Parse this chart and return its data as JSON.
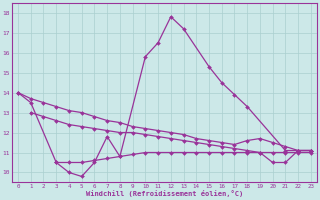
{
  "xlabel": "Windchill (Refroidissement éolien,°C)",
  "bg_color": "#cce8e8",
  "grid_color": "#aacfcf",
  "line_color": "#993399",
  "xlim": [
    -0.5,
    23.5
  ],
  "ylim": [
    9.5,
    18.5
  ],
  "yticks": [
    10,
    11,
    12,
    13,
    14,
    15,
    16,
    17,
    18
  ],
  "xticks": [
    0,
    1,
    2,
    3,
    4,
    5,
    6,
    7,
    8,
    9,
    10,
    11,
    12,
    13,
    14,
    15,
    16,
    17,
    18,
    19,
    20,
    21,
    22,
    23
  ],
  "curve1_x": [
    0,
    1,
    3,
    4,
    5,
    6,
    7,
    8,
    10,
    11,
    12,
    13,
    15,
    16,
    17,
    18,
    21,
    22,
    23
  ],
  "curve1_y": [
    14.0,
    13.5,
    10.5,
    10.0,
    9.8,
    10.5,
    11.8,
    10.8,
    15.8,
    16.5,
    17.8,
    17.2,
    15.3,
    14.5,
    13.9,
    13.3,
    11.1,
    11.1,
    11.1
  ],
  "curve2_x": [
    0,
    1,
    2,
    3,
    4,
    5,
    6,
    7,
    8,
    9,
    10,
    11,
    12,
    13,
    14,
    15,
    16,
    17,
    18,
    19,
    20,
    21,
    22,
    23
  ],
  "curve2_y": [
    14.0,
    13.7,
    13.5,
    13.3,
    13.1,
    13.0,
    12.8,
    12.6,
    12.5,
    12.3,
    12.2,
    12.1,
    12.0,
    11.9,
    11.7,
    11.6,
    11.5,
    11.4,
    11.6,
    11.7,
    11.5,
    11.3,
    11.1,
    11.1
  ],
  "curve3_x": [
    1,
    2,
    3,
    4,
    5,
    6,
    7,
    8,
    9,
    10,
    11,
    12,
    13,
    14,
    15,
    16,
    17,
    18,
    19,
    20,
    21,
    22,
    23
  ],
  "curve3_y": [
    13.0,
    12.8,
    12.6,
    12.4,
    12.3,
    12.2,
    12.1,
    12.0,
    12.0,
    11.9,
    11.8,
    11.7,
    11.6,
    11.5,
    11.4,
    11.3,
    11.2,
    11.1,
    11.0,
    11.0,
    11.0,
    11.0,
    11.0
  ],
  "curve4_x": [
    3,
    4,
    5,
    6,
    7,
    8,
    9,
    10,
    11,
    12,
    13,
    14,
    15,
    16,
    17,
    18,
    19,
    20,
    21,
    22,
    23
  ],
  "curve4_y": [
    10.5,
    10.5,
    10.5,
    10.6,
    10.7,
    10.8,
    10.9,
    11.0,
    11.0,
    11.0,
    11.0,
    11.0,
    11.0,
    11.0,
    11.0,
    11.0,
    11.0,
    10.5,
    10.5,
    11.1,
    11.1
  ]
}
